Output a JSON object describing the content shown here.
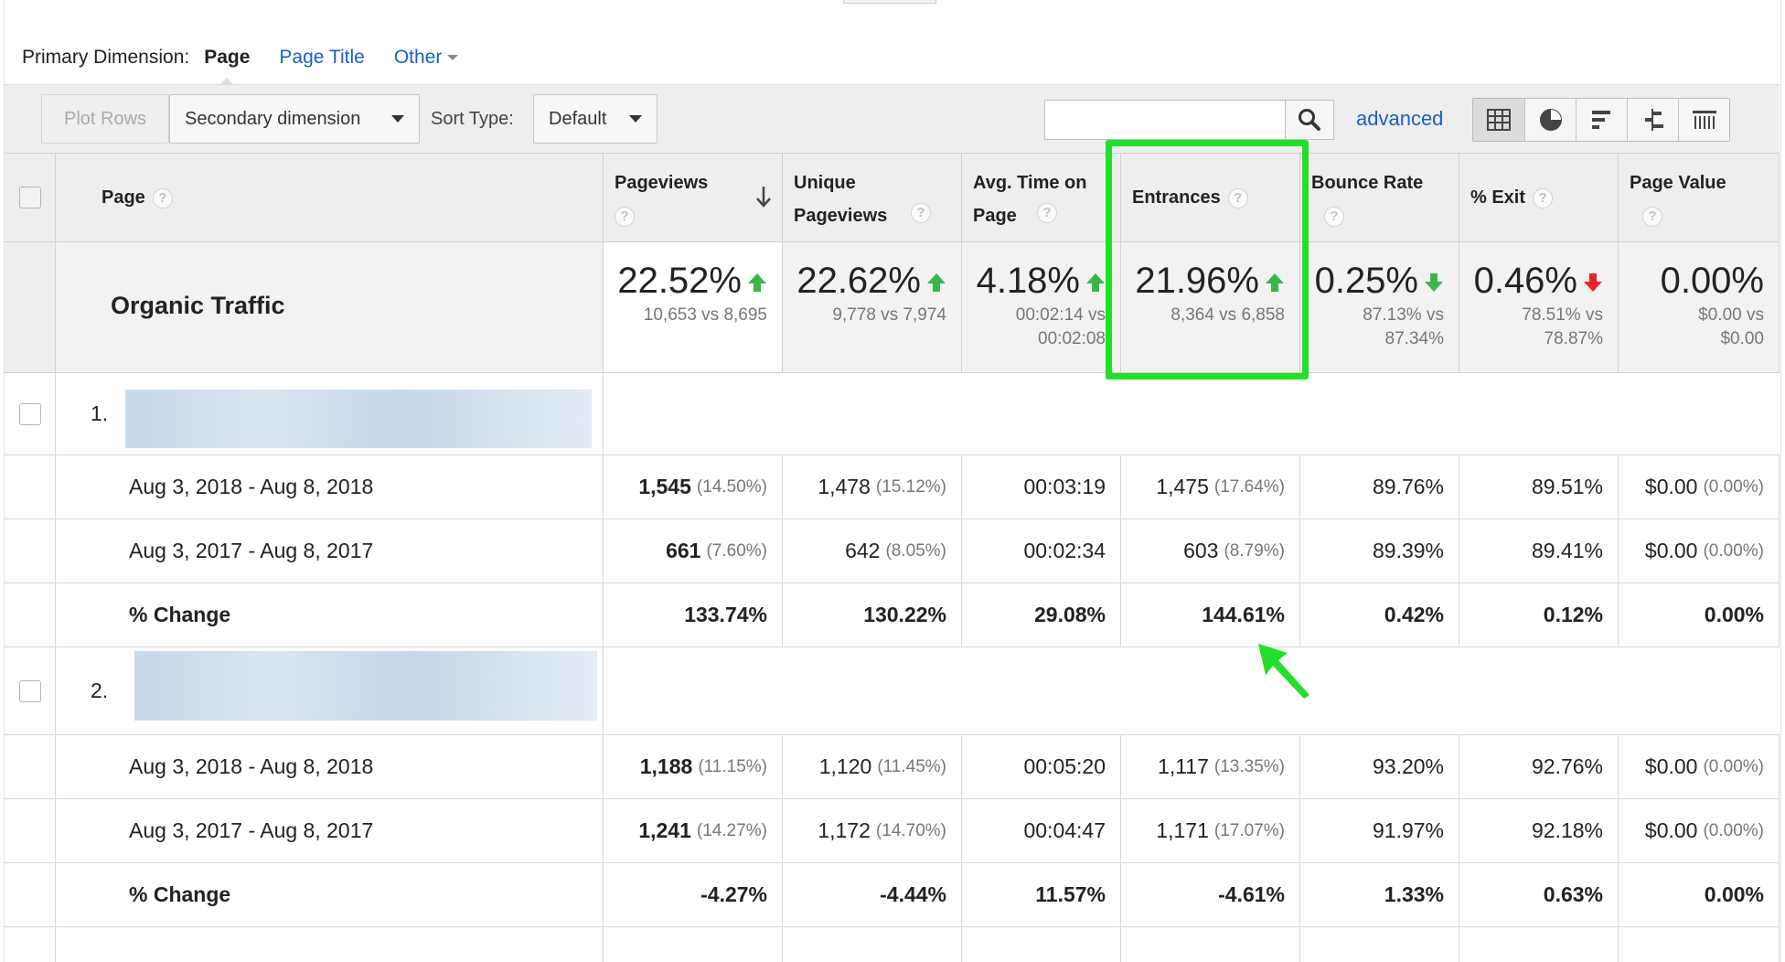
{
  "primary_dimension": {
    "label": "Primary Dimension:",
    "active": "Page",
    "links": [
      "Page Title",
      "Other"
    ]
  },
  "toolbar": {
    "plot_rows": "Plot Rows",
    "secondary_dimension": "Secondary dimension",
    "sort_type_label": "Sort Type:",
    "sort_type_value": "Default",
    "search_value": "",
    "advanced": "advanced",
    "views": [
      "table-view-icon",
      "pie-view-icon",
      "performance-view-icon",
      "comparison-view-icon",
      "pivot-view-icon"
    ]
  },
  "columns": {
    "page": "Page",
    "pageviews": "Pageviews",
    "unique_pageviews": "Unique Pageviews",
    "avg_time": "Avg. Time on Page",
    "entrances": "Entrances",
    "bounce_rate": "Bounce Rate",
    "exit": "% Exit",
    "page_value": "Page Value"
  },
  "summary": {
    "segment": "Organic Traffic",
    "pageviews": {
      "value": "22.52%",
      "detail": "10,653 vs 8,695",
      "trend": "up"
    },
    "unique_pageviews": {
      "value": "22.62%",
      "detail": "9,778 vs 7,974",
      "trend": "up"
    },
    "avg_time": {
      "value": "4.18%",
      "detail1": "00:02:14 vs",
      "detail2": "00:02:08",
      "trend": "up"
    },
    "entrances": {
      "value": "21.96%",
      "detail": "8,364 vs 6,858",
      "trend": "up"
    },
    "bounce_rate": {
      "value": "0.25%",
      "detail1": "87.13% vs",
      "detail2": "87.34%",
      "trend": "down-good"
    },
    "exit": {
      "value": "0.46%",
      "detail1": "78.51% vs",
      "detail2": "78.87%",
      "trend": "down-bad"
    },
    "page_value": {
      "value": "0.00%",
      "detail1": "$0.00 vs",
      "detail2": "$0.00",
      "trend": "none"
    }
  },
  "groups": [
    {
      "index": "1.",
      "rows": [
        {
          "label": "Aug 3, 2018 - Aug 8, 2018",
          "pageviews": "1,545",
          "pageviews_pct": "(14.50%)",
          "unique": "1,478",
          "unique_pct": "(15.12%)",
          "avg_time": "00:03:19",
          "entrances": "1,475",
          "entrances_pct": "(17.64%)",
          "bounce": "89.76%",
          "exit": "89.51%",
          "value": "$0.00",
          "value_pct": "(0.00%)"
        },
        {
          "label": "Aug 3, 2017 - Aug 8, 2017",
          "pageviews": "661",
          "pageviews_pct": "(7.60%)",
          "unique": "642",
          "unique_pct": "(8.05%)",
          "avg_time": "00:02:34",
          "entrances": "603",
          "entrances_pct": "(8.79%)",
          "bounce": "89.39%",
          "exit": "89.41%",
          "value": "$0.00",
          "value_pct": "(0.00%)"
        }
      ],
      "change": {
        "label": "% Change",
        "pageviews": "133.74%",
        "unique": "130.22%",
        "avg_time": "29.08%",
        "entrances": "144.61%",
        "bounce": "0.42%",
        "exit": "0.12%",
        "value": "0.00%"
      }
    },
    {
      "index": "2.",
      "rows": [
        {
          "label": "Aug 3, 2018 - Aug 8, 2018",
          "pageviews": "1,188",
          "pageviews_pct": "(11.15%)",
          "unique": "1,120",
          "unique_pct": "(11.45%)",
          "avg_time": "00:05:20",
          "entrances": "1,117",
          "entrances_pct": "(13.35%)",
          "bounce": "93.20%",
          "exit": "92.76%",
          "value": "$0.00",
          "value_pct": "(0.00%)"
        },
        {
          "label": "Aug 3, 2017 - Aug 8, 2017",
          "pageviews": "1,241",
          "pageviews_pct": "(14.27%)",
          "unique": "1,172",
          "unique_pct": "(14.70%)",
          "avg_time": "00:04:47",
          "entrances": "1,171",
          "entrances_pct": "(17.07%)",
          "bounce": "91.97%",
          "exit": "92.18%",
          "value": "$0.00",
          "value_pct": "(0.00%)"
        }
      ],
      "change": {
        "label": "% Change",
        "pageviews": "-4.27%",
        "unique": "-4.44%",
        "avg_time": "11.57%",
        "entrances": "-4.61%",
        "bounce": "1.33%",
        "exit": "0.63%",
        "value": "0.00%"
      }
    }
  ],
  "colors": {
    "link": "#1a5fc8",
    "up": "#3bb54a",
    "down_bad": "#e8232a",
    "highlight": "#22e02a"
  }
}
